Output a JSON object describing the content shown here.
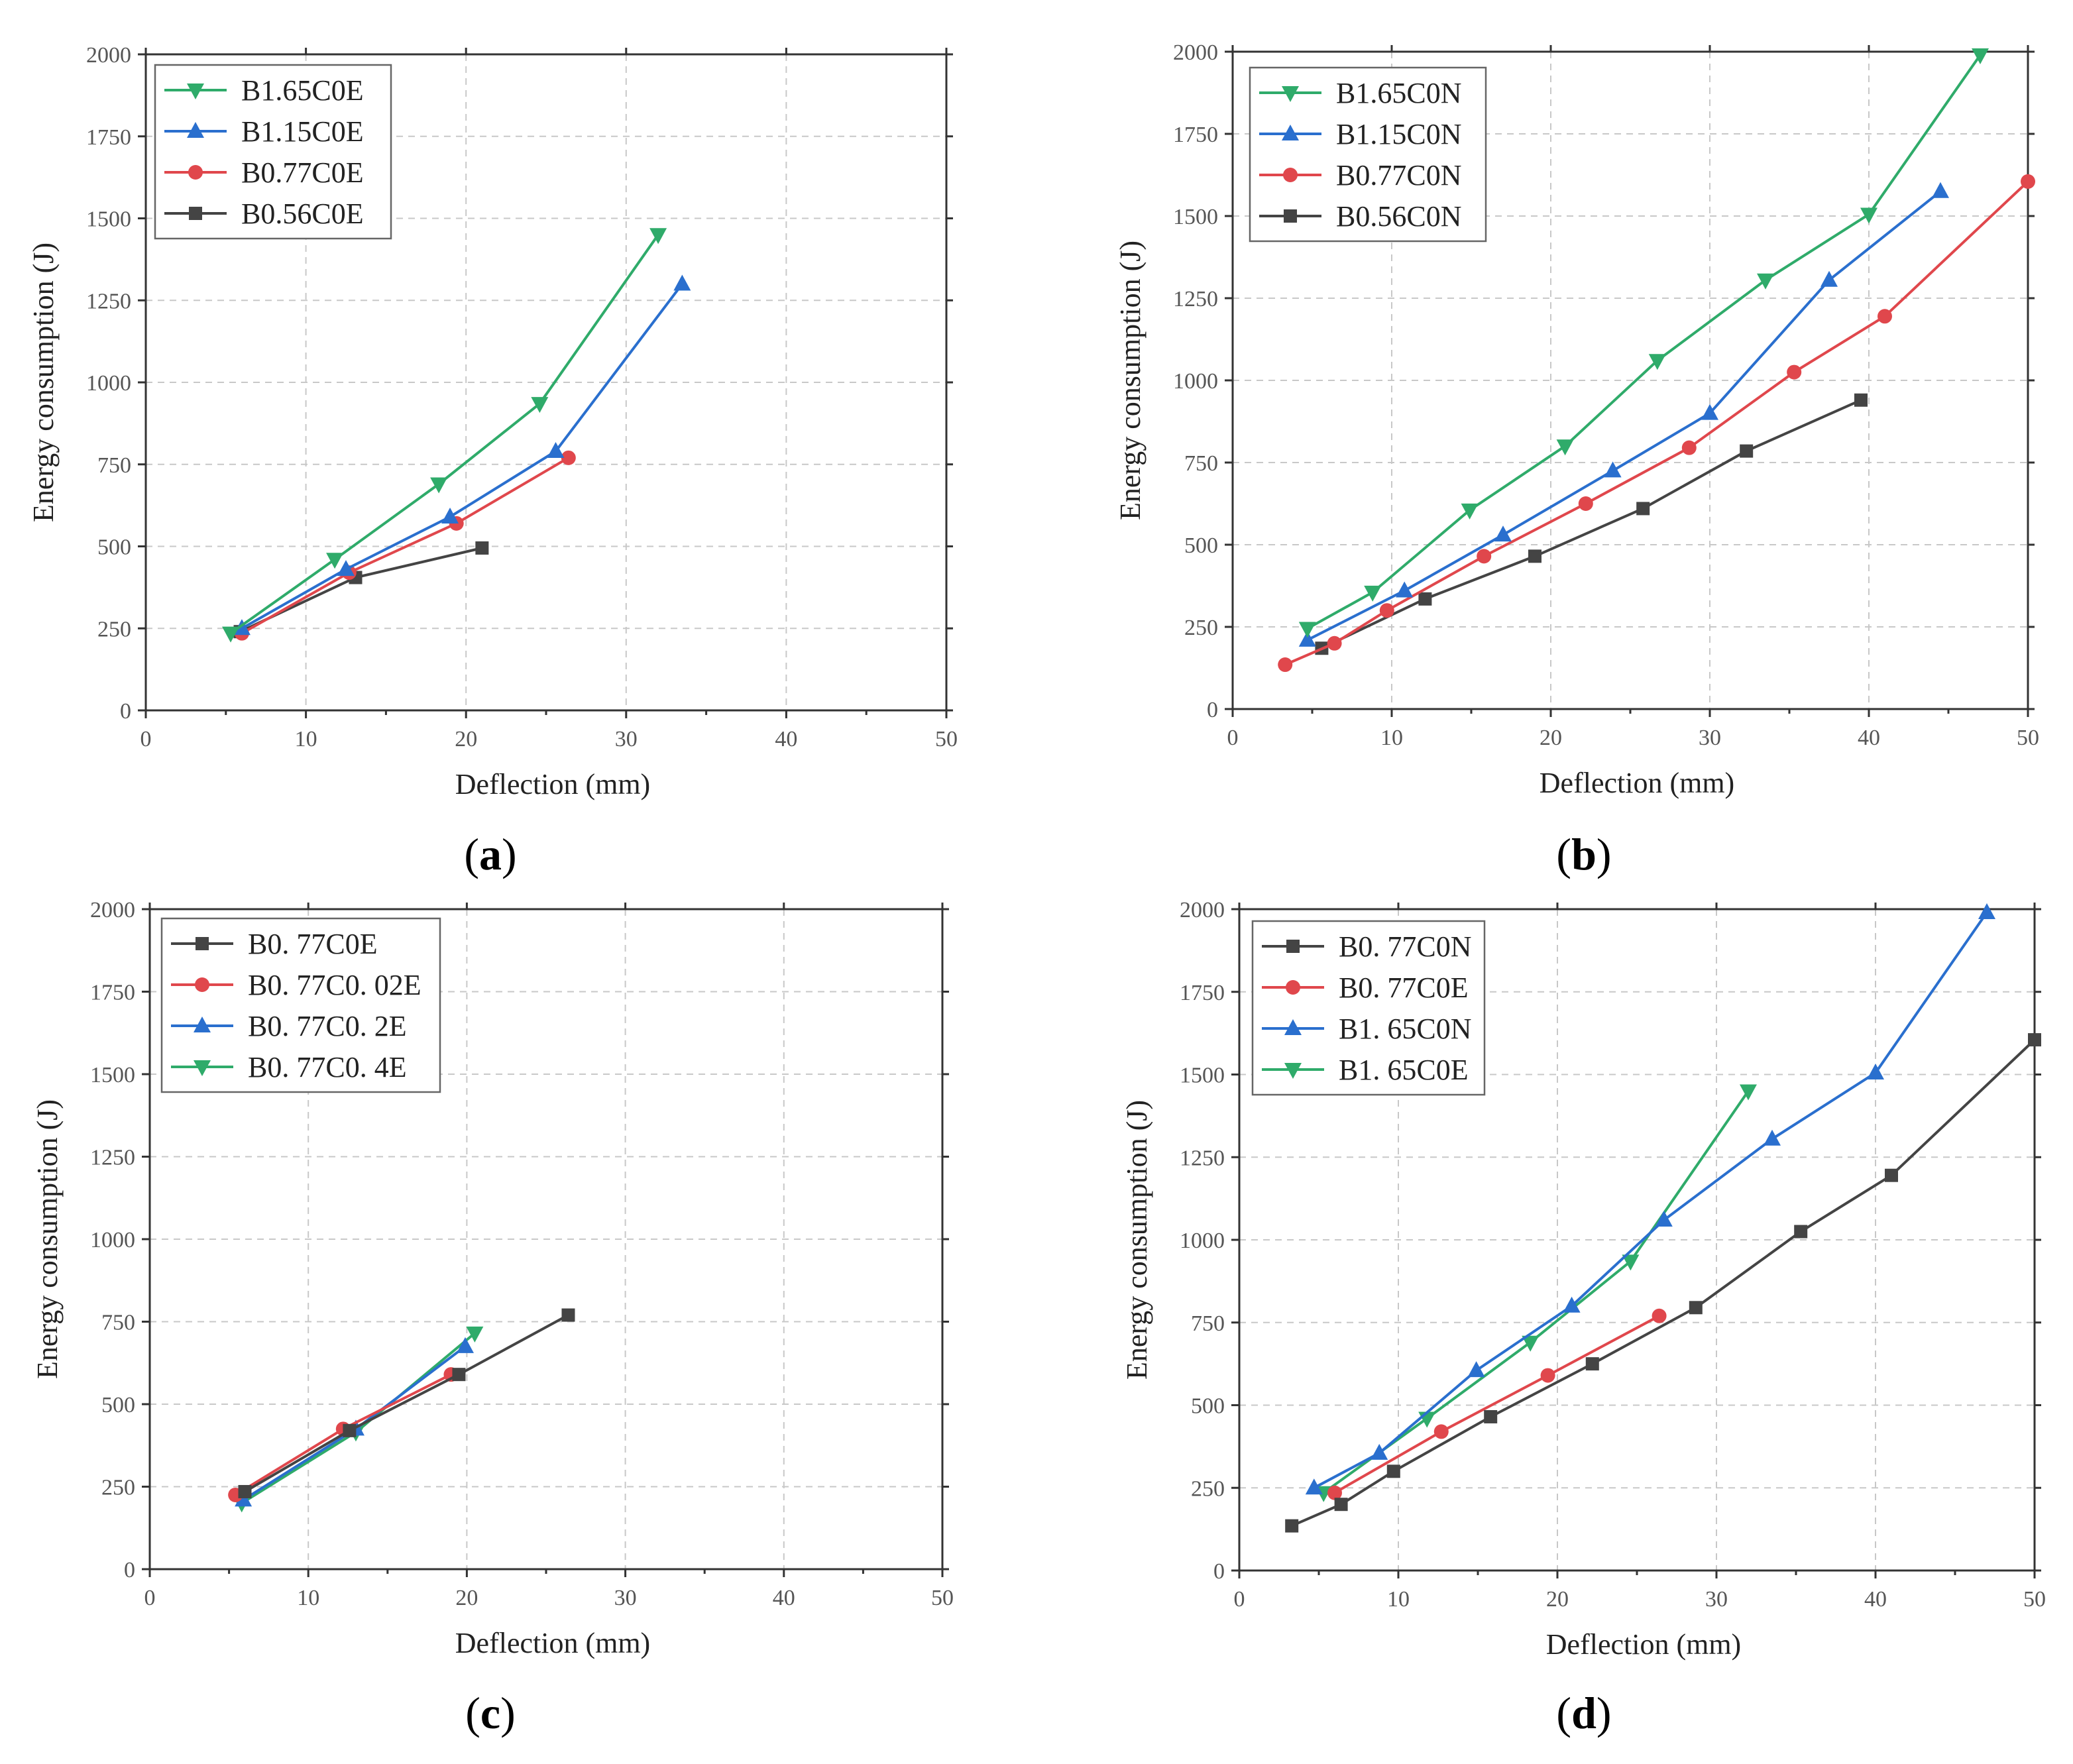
{
  "figure": {
    "panel_labels": [
      "a",
      "b",
      "c",
      "d"
    ],
    "colors": {
      "black": "#444444",
      "red": "#e0474c",
      "blue": "#2a6fce",
      "green": "#2fab6a"
    }
  },
  "chart_data": [
    {
      "type": "line",
      "panel": "a",
      "xlabel": "Deflection (mm)",
      "ylabel": "Energy consumption (J)",
      "xlim": [
        0,
        50
      ],
      "ylim": [
        0,
        2000
      ],
      "xticks": [
        0,
        10,
        20,
        30,
        40,
        50
      ],
      "yticks": [
        0,
        250,
        500,
        750,
        1000,
        1250,
        1500,
        1750,
        2000
      ],
      "grid": true,
      "legend_position": "top-left",
      "series": [
        {
          "name": "B1.65C0E",
          "color": "#2fab6a",
          "marker": "triangle-down",
          "x": [
            5.3,
            11.8,
            18.3,
            24.6,
            32.0
          ],
          "y": [
            235,
            460,
            690,
            935,
            1450
          ]
        },
        {
          "name": "B1.15C0E",
          "color": "#2a6fce",
          "marker": "triangle-up",
          "x": [
            6.0,
            12.5,
            19.0,
            25.6,
            33.5
          ],
          "y": [
            250,
            430,
            590,
            790,
            1300
          ]
        },
        {
          "name": "B0.77C0E",
          "color": "#e0474c",
          "marker": "circle",
          "x": [
            6.0,
            12.7,
            19.4,
            26.4
          ],
          "y": [
            235,
            420,
            570,
            770
          ]
        },
        {
          "name": "B0.56C0E",
          "color": "#444444",
          "marker": "square",
          "x": [
            5.9,
            13.1,
            21.0
          ],
          "y": [
            240,
            405,
            495
          ]
        }
      ]
    },
    {
      "type": "line",
      "panel": "b",
      "xlabel": "Deflection (mm)",
      "ylabel": "Energy consumption (J)",
      "xlim": [
        0,
        50
      ],
      "ylim": [
        0,
        2000
      ],
      "xticks": [
        0,
        10,
        20,
        30,
        40,
        50
      ],
      "yticks": [
        0,
        250,
        500,
        750,
        1000,
        1250,
        1500,
        1750,
        2000
      ],
      "grid": true,
      "legend_position": "top-left",
      "series": [
        {
          "name": "B1.65C0N",
          "color": "#2fab6a",
          "marker": "triangle-down",
          "x": [
            4.7,
            8.8,
            14.9,
            20.9,
            26.7,
            33.5,
            40.0,
            47.0
          ],
          "y": [
            245,
            355,
            605,
            800,
            1060,
            1305,
            1505,
            1990
          ]
        },
        {
          "name": "B1.15C0N",
          "color": "#2a6fce",
          "marker": "triangle-up",
          "x": [
            4.7,
            10.8,
            17.0,
            23.9,
            30.0,
            37.5,
            44.5
          ],
          "y": [
            210,
            360,
            530,
            725,
            900,
            1305,
            1575
          ]
        },
        {
          "name": "B0.77C0N",
          "color": "#e0474c",
          "marker": "circle",
          "x": [
            3.3,
            6.4,
            9.7,
            15.8,
            22.2,
            28.7,
            35.3,
            41.0,
            50.0
          ],
          "y": [
            135,
            200,
            300,
            465,
            625,
            795,
            1025,
            1195,
            1605
          ]
        },
        {
          "name": "B0.56C0N",
          "color": "#444444",
          "marker": "square",
          "x": [
            5.6,
            12.1,
            19.0,
            25.8,
            32.3,
            39.5
          ],
          "y": [
            185,
            335,
            465,
            610,
            785,
            940
          ]
        }
      ]
    },
    {
      "type": "line",
      "panel": "c",
      "xlabel": "Deflection (mm)",
      "ylabel": "Energy consumption (J)",
      "xlim": [
        0,
        50
      ],
      "ylim": [
        0,
        2000
      ],
      "xticks": [
        0,
        10,
        20,
        30,
        40,
        50
      ],
      "yticks": [
        0,
        250,
        500,
        750,
        1000,
        1250,
        1500,
        1750,
        2000
      ],
      "grid": true,
      "legend_position": "top-left",
      "series": [
        {
          "name": "B0. 77C0E",
          "color": "#444444",
          "marker": "square",
          "x": [
            6.0,
            12.6,
            19.5,
            26.4
          ],
          "y": [
            235,
            420,
            590,
            770
          ]
        },
        {
          "name": "B0. 77C0. 02E",
          "color": "#e0474c",
          "marker": "circle",
          "x": [
            5.4,
            12.2,
            19.0
          ],
          "y": [
            225,
            425,
            590
          ]
        },
        {
          "name": "B0. 77C0. 2E",
          "color": "#2a6fce",
          "marker": "triangle-up",
          "x": [
            5.9,
            13.0,
            19.9
          ],
          "y": [
            210,
            425,
            675
          ]
        },
        {
          "name": "B0. 77C0. 4E",
          "color": "#2fab6a",
          "marker": "triangle-down",
          "x": [
            5.8,
            13.0,
            20.5
          ],
          "y": [
            200,
            415,
            715
          ]
        }
      ]
    },
    {
      "type": "line",
      "panel": "d",
      "xlabel": "Deflection (mm)",
      "ylabel": "Energy consumption (J)",
      "xlim": [
        0,
        50
      ],
      "ylim": [
        0,
        2000
      ],
      "xticks": [
        0,
        10,
        20,
        30,
        40,
        50
      ],
      "yticks": [
        0,
        250,
        500,
        750,
        1000,
        1250,
        1500,
        1750,
        2000
      ],
      "grid": true,
      "legend_position": "top-left",
      "series": [
        {
          "name": "B0. 77C0N",
          "color": "#444444",
          "marker": "square",
          "x": [
            3.3,
            6.4,
            9.7,
            15.8,
            22.2,
            28.7,
            35.3,
            41.0,
            50.0
          ],
          "y": [
            135,
            200,
            300,
            465,
            625,
            795,
            1025,
            1195,
            1605
          ]
        },
        {
          "name": "B0. 77C0E",
          "color": "#e0474c",
          "marker": "circle",
          "x": [
            6.0,
            12.7,
            19.4,
            26.4
          ],
          "y": [
            235,
            420,
            590,
            770
          ]
        },
        {
          "name": "B1. 65C0N",
          "color": "#2a6fce",
          "marker": "triangle-up",
          "x": [
            4.7,
            8.8,
            14.9,
            20.9,
            26.7,
            33.5,
            40.0,
            47.0
          ],
          "y": [
            250,
            355,
            605,
            800,
            1060,
            1305,
            1505,
            1990
          ]
        },
        {
          "name": "B1. 65C0E",
          "color": "#2fab6a",
          "marker": "triangle-down",
          "x": [
            5.3,
            11.8,
            18.3,
            24.6,
            32.0
          ],
          "y": [
            235,
            460,
            690,
            935,
            1450
          ]
        }
      ]
    }
  ]
}
